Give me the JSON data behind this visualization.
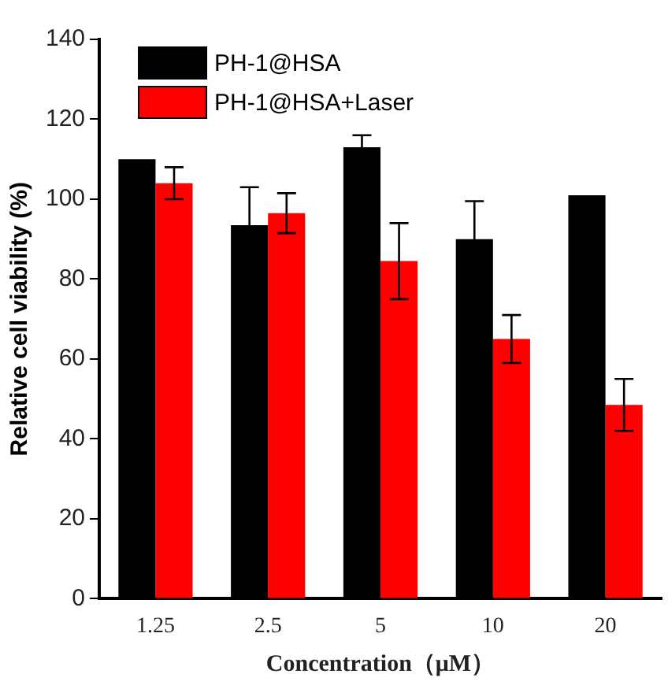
{
  "chart_data": {
    "type": "bar",
    "xlabel": "Concentration（μM）",
    "ylabel": "Relative cell viability (%)",
    "categories": [
      "1.25",
      "2.5",
      "5",
      "10",
      "20"
    ],
    "series": [
      {
        "name": "PH-1@HSA",
        "color": "#000000",
        "values": [
          110,
          93.5,
          113,
          90,
          101
        ],
        "errors": [
          null,
          9.5,
          3,
          9.5,
          null
        ]
      },
      {
        "name": "PH-1@HSA+Laser",
        "color": "#ff0000",
        "values": [
          104,
          96.5,
          84.5,
          65,
          48.5
        ],
        "errors": [
          4,
          5,
          9.5,
          6,
          6.5
        ]
      }
    ],
    "ylim": [
      0,
      140
    ],
    "yticks": [
      0,
      20,
      40,
      60,
      80,
      100,
      120,
      140
    ],
    "grid": false,
    "legend": "top left"
  }
}
